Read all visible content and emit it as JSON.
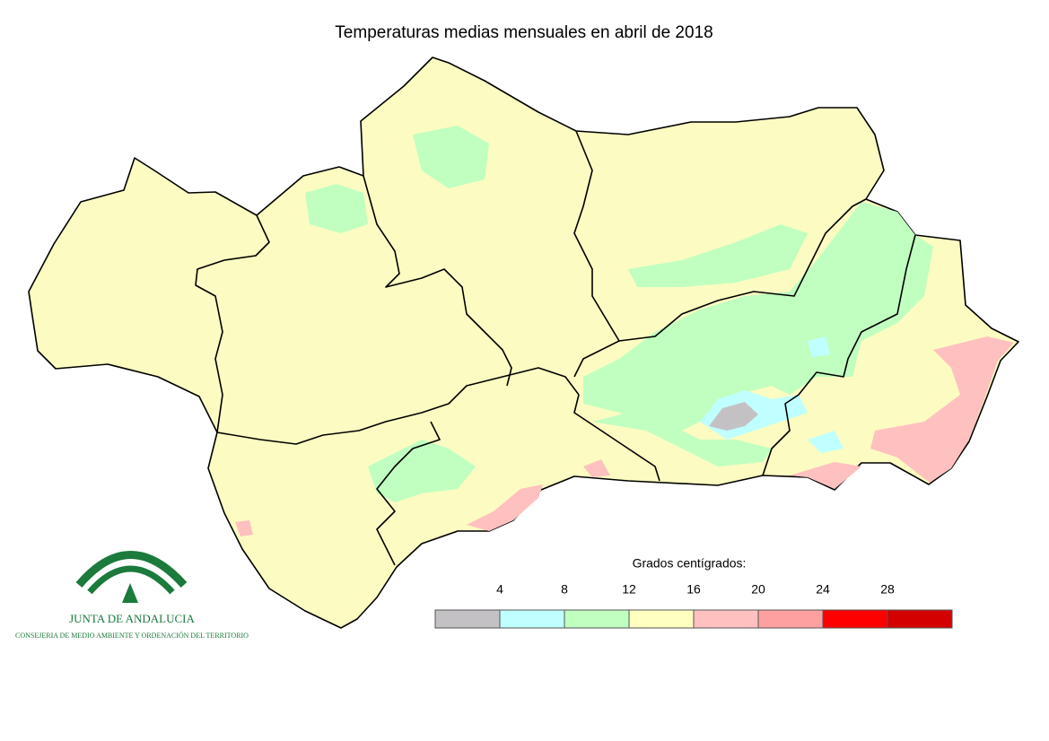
{
  "title": "Temperaturas medias mensuales en abril de 2018",
  "legend": {
    "title": "Grados centígrados:",
    "ticks": [
      4,
      8,
      12,
      16,
      20,
      24,
      28
    ],
    "colors": [
      "#c4c1c4",
      "#c0ffff",
      "#c0ffc0",
      "#ffffc0",
      "#ffc0c0",
      "#ffa0a0",
      "#ff0000",
      "#d40000"
    ]
  },
  "logo": {
    "name": "JUNTA DE ANDALUCIA",
    "department": "CONSEJERIA DE MEDIO AMBIENTE Y ORDENACIÓN DEL TERRITORIO"
  }
}
